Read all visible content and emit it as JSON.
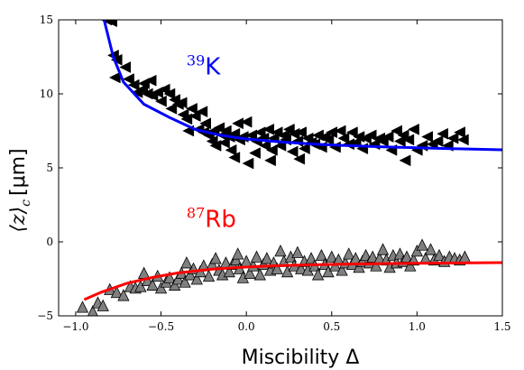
{
  "chart_data": {
    "type": "scatter",
    "xlabel": "Miscibility Δ",
    "ylabel_main": "⟨z⟩",
    "ylabel_sub": "c",
    "ylabel_unit": "[μm]",
    "xlim": [
      -1.1,
      1.5
    ],
    "ylim": [
      -5,
      15
    ],
    "x_ticks": [
      -1.0,
      -0.5,
      0.0,
      0.5,
      1.0,
      1.5
    ],
    "x_tick_labels": [
      "−1.0",
      "−0.5",
      "0.0",
      "0.5",
      "1.0",
      "1.5"
    ],
    "y_ticks": [
      -5,
      0,
      5,
      10,
      15
    ],
    "y_tick_labels": [
      "−5",
      "0",
      "5",
      "10",
      "15"
    ],
    "grid": false,
    "annotations": [
      {
        "sup": "39",
        "text": "K",
        "color": "#0000ff",
        "x": -0.35,
        "y": 11.3
      },
      {
        "sup": "87",
        "text": "Rb",
        "color": "#ff0000",
        "x": -0.35,
        "y": 1.0
      }
    ],
    "series": [
      {
        "marker": "triangle-left",
        "color": "#000000",
        "points": [
          [
            -0.82,
            15.0
          ],
          [
            -0.79,
            14.9
          ],
          [
            -0.78,
            12.6
          ],
          [
            -0.76,
            12.3
          ],
          [
            -0.77,
            11.1
          ],
          [
            -0.71,
            11.8
          ],
          [
            -0.69,
            11.0
          ],
          [
            -0.66,
            10.6
          ],
          [
            -0.64,
            10.1
          ],
          [
            -0.61,
            10.3
          ],
          [
            -0.6,
            10.7
          ],
          [
            -0.58,
            10.0
          ],
          [
            -0.55,
            9.9
          ],
          [
            -0.56,
            10.9
          ],
          [
            -0.52,
            10.1
          ],
          [
            -0.5,
            9.5
          ],
          [
            -0.48,
            10.3
          ],
          [
            -0.45,
            10.0
          ],
          [
            -0.44,
            9.0
          ],
          [
            -0.42,
            9.6
          ],
          [
            -0.4,
            9.3
          ],
          [
            -0.38,
            9.4
          ],
          [
            -0.37,
            8.6
          ],
          [
            -0.35,
            8.3
          ],
          [
            -0.34,
            7.5
          ],
          [
            -0.32,
            9.0
          ],
          [
            -0.3,
            8.5
          ],
          [
            -0.28,
            7.6
          ],
          [
            -0.26,
            8.8
          ],
          [
            -0.25,
            7.4
          ],
          [
            -0.24,
            8.0
          ],
          [
            -0.22,
            7.2
          ],
          [
            -0.2,
            6.8
          ],
          [
            -0.19,
            7.5
          ],
          [
            -0.18,
            6.5
          ],
          [
            -0.16,
            7.7
          ],
          [
            -0.14,
            7.2
          ],
          [
            -0.13,
            6.7
          ],
          [
            -0.12,
            7.5
          ],
          [
            -0.1,
            7.1
          ],
          [
            -0.09,
            6.2
          ],
          [
            -0.07,
            7.3
          ],
          [
            -0.05,
            8.0
          ],
          [
            -0.04,
            6.9
          ],
          [
            -0.02,
            7.1
          ],
          [
            0.0,
            8.1
          ],
          [
            0.01,
            5.3
          ],
          [
            0.03,
            7.2
          ],
          [
            0.05,
            6.0
          ],
          [
            0.06,
            6.8
          ],
          [
            0.08,
            7.4
          ],
          [
            0.1,
            7.0
          ],
          [
            0.11,
            6.5
          ],
          [
            0.13,
            7.6
          ],
          [
            0.15,
            6.2
          ],
          [
            0.16,
            7.0
          ],
          [
            0.18,
            7.4
          ],
          [
            0.2,
            6.5
          ],
          [
            0.22,
            7.2
          ],
          [
            0.23,
            6.9
          ],
          [
            0.25,
            7.6
          ],
          [
            0.27,
            6.1
          ],
          [
            0.28,
            7.3
          ],
          [
            0.3,
            6.8
          ],
          [
            0.32,
            7.4
          ],
          [
            0.34,
            6.3
          ],
          [
            0.36,
            7.0
          ],
          [
            0.38,
            6.7
          ],
          [
            0.4,
            6.6
          ],
          [
            0.42,
            7.2
          ],
          [
            0.44,
            6.4
          ],
          [
            0.46,
            7.1
          ],
          [
            0.48,
            6.9
          ],
          [
            0.5,
            7.4
          ],
          [
            0.52,
            6.4
          ],
          [
            0.55,
            7.5
          ],
          [
            0.57,
            7.0
          ],
          [
            0.6,
            6.6
          ],
          [
            0.62,
            7.4
          ],
          [
            0.64,
            6.7
          ],
          [
            0.66,
            7.1
          ],
          [
            0.68,
            6.3
          ],
          [
            0.7,
            7.0
          ],
          [
            0.73,
            7.2
          ],
          [
            0.75,
            6.6
          ],
          [
            0.78,
            7.0
          ],
          [
            0.8,
            6.8
          ],
          [
            0.83,
            7.1
          ],
          [
            0.85,
            6.2
          ],
          [
            0.88,
            7.5
          ],
          [
            0.9,
            6.8
          ],
          [
            0.92,
            7.2
          ],
          [
            0.95,
            6.9
          ],
          [
            0.98,
            7.6
          ],
          [
            1.0,
            6.2
          ],
          [
            1.03,
            6.5
          ],
          [
            1.06,
            7.1
          ],
          [
            1.09,
            6.6
          ],
          [
            1.12,
            6.8
          ],
          [
            1.15,
            7.3
          ],
          [
            1.18,
            6.5
          ],
          [
            1.21,
            7.0
          ],
          [
            1.25,
            7.4
          ],
          [
            1.27,
            6.9
          ],
          [
            0.31,
            5.6
          ],
          [
            0.14,
            5.5
          ],
          [
            -0.07,
            5.7
          ],
          [
            0.93,
            5.5
          ]
        ]
      },
      {
        "marker": "triangle-up",
        "color": "#808080",
        "points": [
          [
            -0.96,
            -4.4
          ],
          [
            -0.9,
            -4.7
          ],
          [
            -0.87,
            -4.1
          ],
          [
            -0.84,
            -4.3
          ],
          [
            -0.8,
            -3.2
          ],
          [
            -0.76,
            -3.4
          ],
          [
            -0.72,
            -3.6
          ],
          [
            -0.68,
            -3.0
          ],
          [
            -0.65,
            -3.1
          ],
          [
            -0.62,
            -3.0
          ],
          [
            -0.58,
            -2.6
          ],
          [
            -0.55,
            -2.9
          ],
          [
            -0.52,
            -2.3
          ],
          [
            -0.5,
            -3.1
          ],
          [
            -0.47,
            -2.7
          ],
          [
            -0.45,
            -2.4
          ],
          [
            -0.42,
            -2.9
          ],
          [
            -0.4,
            -2.5
          ],
          [
            -0.38,
            -2.1
          ],
          [
            -0.36,
            -2.7
          ],
          [
            -0.33,
            -2.2
          ],
          [
            -0.31,
            -1.8
          ],
          [
            -0.29,
            -2.5
          ],
          [
            -0.27,
            -2.0
          ],
          [
            -0.25,
            -1.6
          ],
          [
            -0.22,
            -2.3
          ],
          [
            -0.2,
            -1.5
          ],
          [
            -0.18,
            -1.1
          ],
          [
            -0.16,
            -1.9
          ],
          [
            -0.14,
            -2.2
          ],
          [
            -0.12,
            -1.4
          ],
          [
            -0.1,
            -2.0
          ],
          [
            -0.08,
            -1.5
          ],
          [
            -0.06,
            -1.2
          ],
          [
            -0.04,
            -1.8
          ],
          [
            -0.02,
            -2.4
          ],
          [
            0.0,
            -1.3
          ],
          [
            0.02,
            -2.1
          ],
          [
            0.04,
            -1.6
          ],
          [
            0.06,
            -1.0
          ],
          [
            0.08,
            -2.2
          ],
          [
            0.1,
            -1.5
          ],
          [
            0.12,
            -1.1
          ],
          [
            0.14,
            -1.9
          ],
          [
            0.16,
            -1.4
          ],
          [
            0.18,
            -1.8
          ],
          [
            0.2,
            -0.6
          ],
          [
            0.22,
            -1.3
          ],
          [
            0.24,
            -2.0
          ],
          [
            0.26,
            -1.0
          ],
          [
            0.28,
            -1.6
          ],
          [
            0.3,
            -0.7
          ],
          [
            0.32,
            -1.8
          ],
          [
            0.34,
            -1.3
          ],
          [
            0.36,
            -1.9
          ],
          [
            0.38,
            -1.1
          ],
          [
            0.4,
            -1.6
          ],
          [
            0.42,
            -2.2
          ],
          [
            0.44,
            -0.9
          ],
          [
            0.46,
            -1.5
          ],
          [
            0.48,
            -2.0
          ],
          [
            0.5,
            -1.0
          ],
          [
            0.52,
            -1.6
          ],
          [
            0.54,
            -1.2
          ],
          [
            0.56,
            -1.9
          ],
          [
            0.58,
            -1.4
          ],
          [
            0.6,
            -0.8
          ],
          [
            0.62,
            -1.5
          ],
          [
            0.64,
            -1.1
          ],
          [
            0.66,
            -1.7
          ],
          [
            0.68,
            -1.3
          ],
          [
            0.7,
            -0.9
          ],
          [
            0.72,
            -1.4
          ],
          [
            0.74,
            -1.0
          ],
          [
            0.76,
            -1.6
          ],
          [
            0.78,
            -1.1
          ],
          [
            0.8,
            -0.5
          ],
          [
            0.82,
            -1.2
          ],
          [
            0.84,
            -1.7
          ],
          [
            0.86,
            -0.9
          ],
          [
            0.88,
            -1.4
          ],
          [
            0.9,
            -0.8
          ],
          [
            0.92,
            -1.3
          ],
          [
            0.94,
            -1.0
          ],
          [
            0.96,
            -1.6
          ],
          [
            0.98,
            -1.2
          ],
          [
            1.0,
            -0.6
          ],
          [
            1.03,
            -0.2
          ],
          [
            1.05,
            -1.1
          ],
          [
            1.08,
            -0.5
          ],
          [
            1.1,
            -1.2
          ],
          [
            1.13,
            -0.9
          ],
          [
            1.16,
            -1.3
          ],
          [
            1.19,
            -1.0
          ],
          [
            1.22,
            -1.1
          ],
          [
            1.25,
            -1.2
          ],
          [
            1.28,
            -1.0
          ],
          [
            -0.6,
            -2.1
          ],
          [
            -0.35,
            -1.4
          ],
          [
            -0.05,
            -0.8
          ]
        ]
      }
    ],
    "fits": [
      {
        "color": "#0000ff",
        "points": [
          [
            -0.84,
            15.3
          ],
          [
            -0.78,
            12.5
          ],
          [
            -0.72,
            10.8
          ],
          [
            -0.6,
            9.3
          ],
          [
            -0.45,
            8.4
          ],
          [
            -0.3,
            7.6
          ],
          [
            -0.15,
            7.2
          ],
          [
            0.0,
            6.95
          ],
          [
            0.2,
            6.75
          ],
          [
            0.4,
            6.6
          ],
          [
            0.6,
            6.5
          ],
          [
            0.8,
            6.42
          ],
          [
            1.0,
            6.36
          ],
          [
            1.2,
            6.3
          ],
          [
            1.5,
            6.22
          ]
        ]
      },
      {
        "color": "#ff0000",
        "points": [
          [
            -0.95,
            -3.9
          ],
          [
            -0.85,
            -3.4
          ],
          [
            -0.7,
            -2.8
          ],
          [
            -0.55,
            -2.4
          ],
          [
            -0.4,
            -2.1
          ],
          [
            -0.2,
            -1.85
          ],
          [
            0.0,
            -1.7
          ],
          [
            0.2,
            -1.6
          ],
          [
            0.4,
            -1.55
          ],
          [
            0.6,
            -1.5
          ],
          [
            0.8,
            -1.47
          ],
          [
            1.0,
            -1.45
          ],
          [
            1.2,
            -1.43
          ],
          [
            1.5,
            -1.4
          ]
        ]
      }
    ]
  }
}
